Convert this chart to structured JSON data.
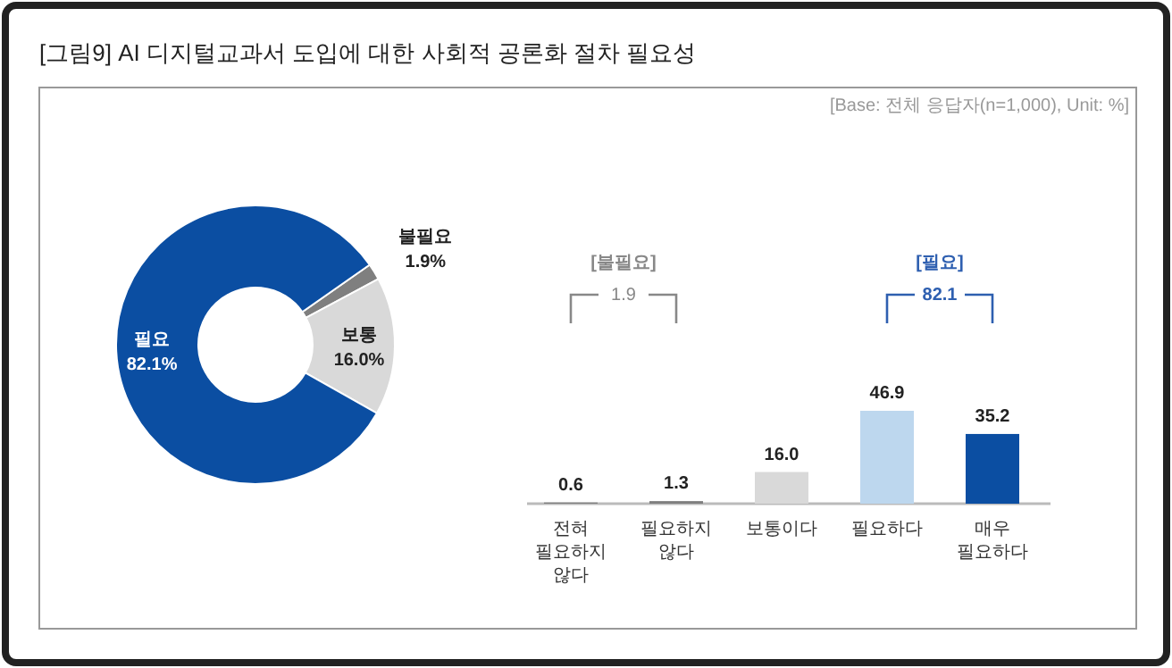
{
  "chart_data": [
    {
      "type": "donut",
      "title": "[그림9] AI 디지털교과서 도입에 대한 사회적 공론화 절차 필요성",
      "annotations": [
        "[Base: 전체 응답자(n=1,000),  Unit: %]"
      ],
      "categories": [
        "불필요",
        "보통",
        "필요"
      ],
      "values": [
        1.9,
        16.0,
        82.1
      ],
      "colors": [
        "#7f7f7f",
        "#d9d9d9",
        "#0b4ea2"
      ],
      "value_labels": [
        "1.9%",
        "16.0%",
        "82.1%"
      ]
    },
    {
      "type": "bar",
      "categories": [
        "전혀 필요하지 않다",
        "필요하지 않다",
        "보통이다",
        "필요하다",
        "매우 필요하다"
      ],
      "values": [
        0.6,
        1.3,
        16.0,
        46.9,
        35.2
      ],
      "colors": [
        "#7f7f7f",
        "#7f7f7f",
        "#d9d9d9",
        "#bdd7ee",
        "#0b4ea2"
      ],
      "value_labels": [
        "0.6",
        "1.3",
        "16.0",
        "46.9",
        "35.2"
      ],
      "annotations": [
        "[불필요]",
        "1.9",
        "[필요]",
        "82.1"
      ]
    }
  ]
}
